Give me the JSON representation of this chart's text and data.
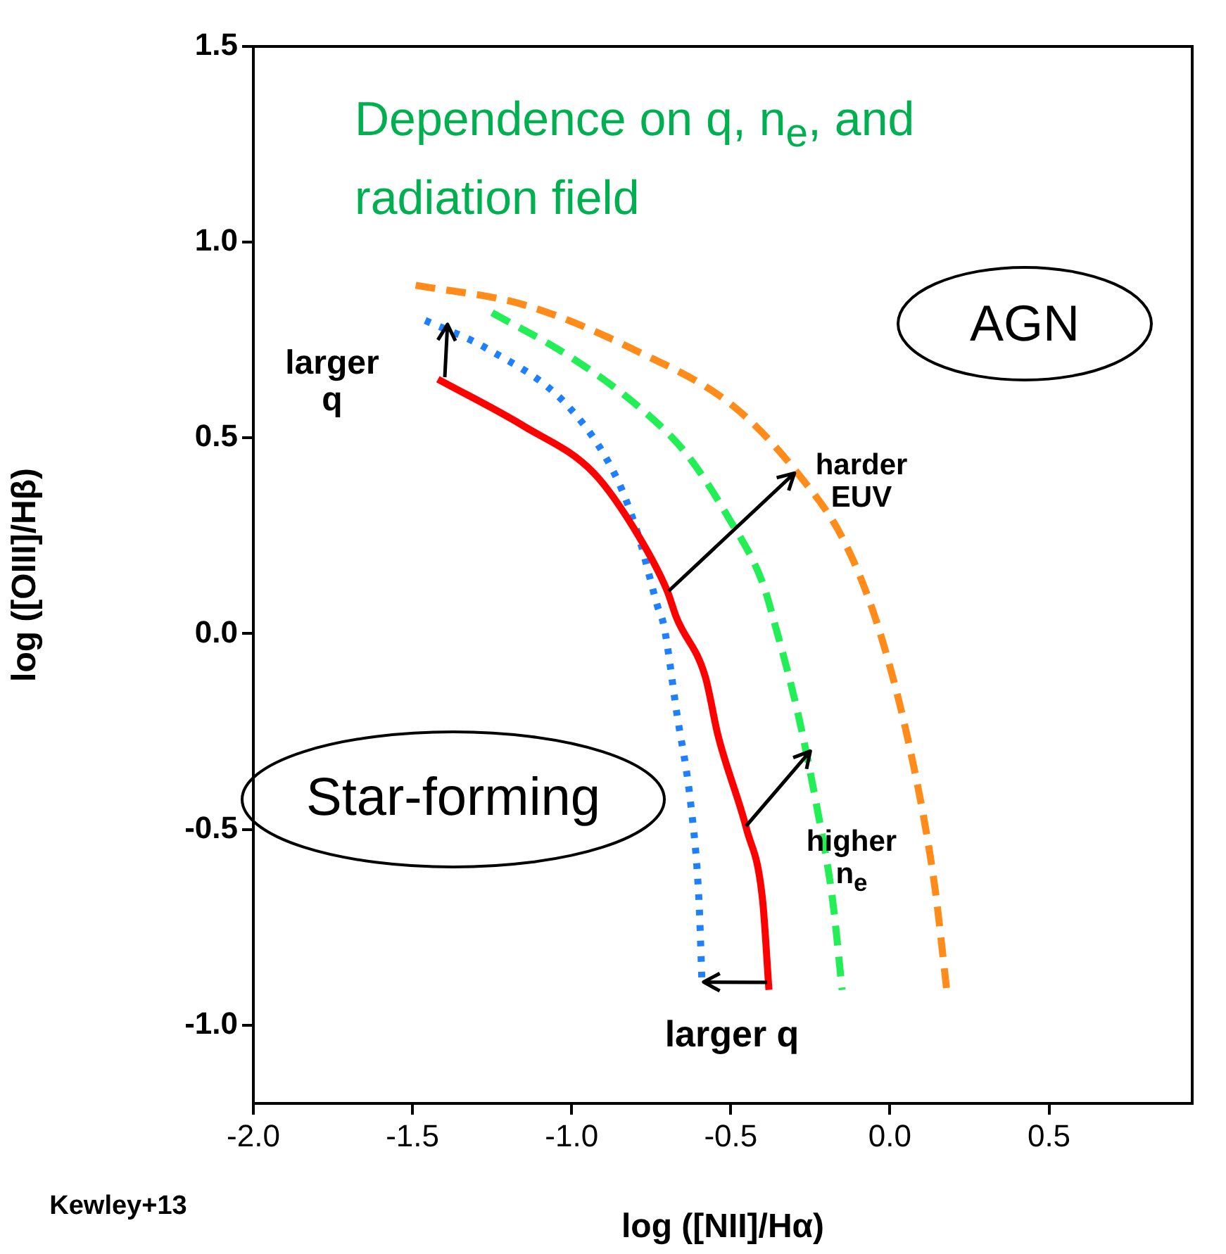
{
  "chart_data": {
    "type": "line",
    "title": "Dependence on q, n$_{e}$, and radiation field",
    "xlabel": "log ([NII]/Hα)",
    "ylabel": "log ([OIII]/Hβ)",
    "xlim": [
      -2.0,
      0.95
    ],
    "ylim": [
      -1.2,
      1.5
    ],
    "xticks": [
      {
        "value": -2.0,
        "label": "-2.0"
      },
      {
        "value": -1.5,
        "label": "-1.5"
      },
      {
        "value": -1.0,
        "label": "-1.0"
      },
      {
        "value": -0.5,
        "label": "-0.5"
      },
      {
        "value": 0.0,
        "label": "0.0"
      },
      {
        "value": 0.5,
        "label": "0.5"
      }
    ],
    "yticks": [
      {
        "value": -1.0,
        "label": "-1.0"
      },
      {
        "value": -0.5,
        "label": "-0.5"
      },
      {
        "value": 0.0,
        "label": "0.0"
      },
      {
        "value": 0.5,
        "label": "0.5"
      },
      {
        "value": 1.0,
        "label": "1.0"
      },
      {
        "value": 1.5,
        "label": "1.5"
      }
    ],
    "grid": false,
    "legend": false,
    "marker": "none",
    "series": [
      {
        "color": "#ff0000",
        "line_style": "solid",
        "x": [
          -1.42,
          -1.15,
          -0.93,
          -0.79,
          -0.7,
          -0.67,
          -0.58,
          -0.54,
          -0.45,
          -0.4,
          -0.38
        ],
        "values": [
          0.65,
          0.53,
          0.41,
          0.25,
          0.11,
          0.04,
          -0.11,
          -0.26,
          -0.5,
          -0.68,
          -0.91
        ]
      },
      {
        "color": "#1e7fff",
        "line_style": "dotted",
        "x": [
          -1.46,
          -1.27,
          -1.01,
          -0.86,
          -0.79,
          -0.73,
          -0.71,
          -0.67,
          -0.625,
          -0.6,
          -0.59
        ],
        "values": [
          0.8,
          0.73,
          0.58,
          0.4,
          0.25,
          0.07,
          0.02,
          -0.2,
          -0.44,
          -0.68,
          -0.9
        ]
      },
      {
        "color": "#22ee55",
        "line_style": "dashed",
        "x": [
          -1.25,
          -1.01,
          -0.79,
          -0.64,
          -0.51,
          -0.4,
          -0.36,
          -0.29,
          -0.23,
          -0.18,
          -0.15
        ],
        "values": [
          0.82,
          0.71,
          0.58,
          0.46,
          0.3,
          0.13,
          0.02,
          -0.2,
          -0.44,
          -0.68,
          -0.91
        ]
      },
      {
        "color": "#ff8c1a",
        "line_style": "dashed",
        "x": [
          -1.49,
          -1.15,
          -0.79,
          -0.49,
          -0.29,
          -0.14,
          -0.03,
          0.07,
          0.14,
          0.18
        ],
        "values": [
          0.89,
          0.84,
          0.72,
          0.58,
          0.41,
          0.23,
          0.0,
          -0.32,
          -0.64,
          -0.92
        ]
      }
    ],
    "annotations": [
      "AGN",
      "Star-forming",
      {
        "text": "larger q",
        "x": -1.39,
        "y": 0.79
      },
      {
        "text": "harder EUV",
        "x": -0.3,
        "y": 0.41
      },
      {
        "text": "higher n$_{e}$",
        "x": -0.25,
        "y": -0.3
      },
      {
        "text": "larger q",
        "x": -0.585,
        "y": -0.89
      },
      "Kewley+13"
    ]
  }
}
